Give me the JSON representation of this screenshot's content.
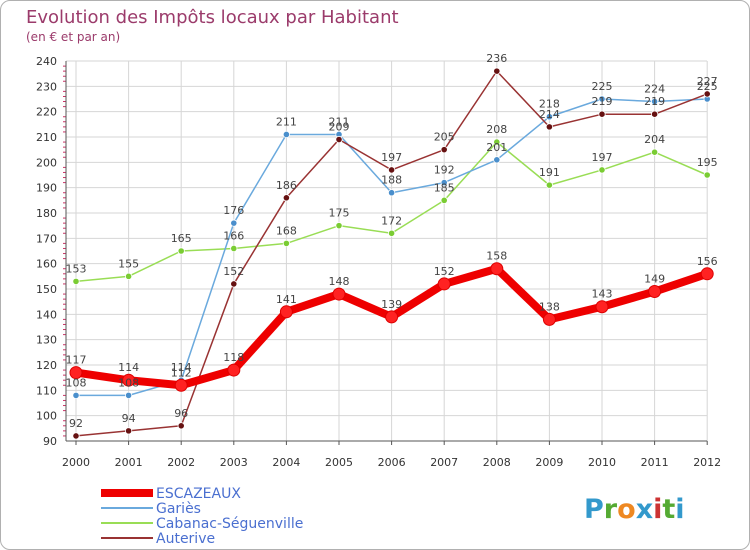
{
  "chart_data": {
    "type": "line",
    "title": "Evolution des Impôts locaux par Habitant",
    "subtitle": "(en € et par an)",
    "x": [
      "2000",
      "2001",
      "2002",
      "2003",
      "2004",
      "2005",
      "2006",
      "2007",
      "2008",
      "2009",
      "2010",
      "2011",
      "2012"
    ],
    "ylim": [
      90,
      240
    ],
    "yticks": [
      90,
      100,
      110,
      120,
      130,
      140,
      150,
      160,
      170,
      180,
      190,
      200,
      210,
      220,
      230,
      240
    ],
    "grid": true,
    "legend_position": "bottom-left",
    "series": [
      {
        "name": "Cabanac-Séguenville",
        "color": "#99dd55",
        "marker": "#7acc33",
        "values": [
          153,
          155,
          165,
          166,
          168,
          175,
          172,
          185,
          208,
          191,
          197,
          204,
          195
        ]
      },
      {
        "name": "Gariès",
        "color": "#6aa9dd",
        "marker": "#4a8fcc",
        "values": [
          108,
          108,
          114,
          176,
          211,
          211,
          188,
          192,
          201,
          218,
          225,
          224,
          225
        ]
      },
      {
        "name": "Auterive",
        "color": "#993333",
        "marker": "#661111",
        "values": [
          92,
          94,
          96,
          152,
          186,
          209,
          197,
          205,
          236,
          214,
          219,
          219,
          227
        ]
      },
      {
        "name": "ESCAZEAUX",
        "color": "#ee0000",
        "marker": "#ff2222",
        "values": [
          117,
          114,
          112,
          118,
          141,
          148,
          139,
          152,
          158,
          138,
          143,
          149,
          156
        ]
      }
    ],
    "legend_order": [
      "ESCAZEAUX",
      "Gariès",
      "Cabanac-Séguenville",
      "Auterive"
    ]
  },
  "brand": {
    "logo_text": "Proxiti",
    "letters": [
      "P",
      "r",
      "o",
      "x",
      "i",
      "t",
      "i"
    ],
    "letter_colors": [
      "#3399cc",
      "#55aa33",
      "#ee8822",
      "#3399cc",
      "#cc3333",
      "#55aa33",
      "#3399cc"
    ]
  },
  "colors": {
    "title": "#9b3b6b",
    "axis_text": "#333333",
    "grid": "#d6d6d6",
    "tick": "#cc3366",
    "label": "#444444"
  }
}
